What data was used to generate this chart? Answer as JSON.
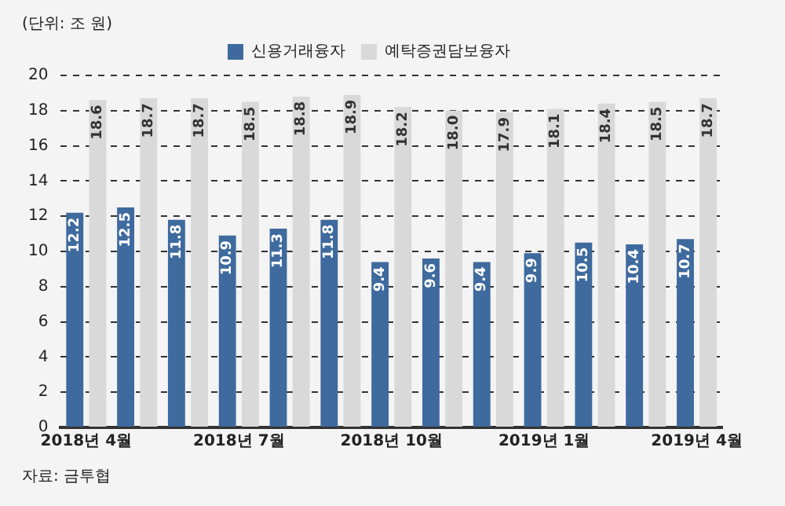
{
  "chart_data": {
    "type": "bar",
    "ylabel": "(단위: 조 원)",
    "categories": [
      "2018년 4월",
      null,
      null,
      "2018년 7월",
      null,
      null,
      "2018년 10월",
      null,
      null,
      "2019년 1월",
      null,
      null,
      "2019년 4월"
    ],
    "series": [
      {
        "name": "신용거래융자",
        "color": "#3e6a9e",
        "values": [
          12.2,
          12.5,
          11.8,
          10.9,
          11.3,
          11.8,
          9.4,
          9.6,
          9.4,
          9.9,
          10.5,
          10.4,
          10.7
        ],
        "value_labels": [
          "12.2",
          "12.5",
          "11.8",
          "10.9",
          "11.3",
          "11.8",
          "9.4",
          "9.6",
          "9.4",
          "9.9",
          "10.5",
          "10.4",
          "10.7"
        ]
      },
      {
        "name": "예탁증권담보융자",
        "color": "#d9d9d9",
        "values": [
          18.6,
          18.7,
          18.7,
          18.5,
          18.8,
          18.9,
          18.2,
          18.0,
          17.9,
          18.1,
          18.4,
          18.5,
          18.7
        ],
        "value_labels": [
          "18.6",
          "18.7",
          "18.7",
          "18.5",
          "18.8",
          "18.9",
          "18.2",
          "18.0",
          "17.9",
          "18.1",
          "18.4",
          "18.5",
          "18.7"
        ]
      }
    ],
    "ylim": [
      0,
      20
    ],
    "yticks": [
      0,
      2,
      4,
      6,
      8,
      10,
      12,
      14,
      16,
      18,
      20
    ],
    "grid": "y",
    "legend": "top",
    "annotations": [
      "자료: 금투협"
    ]
  }
}
